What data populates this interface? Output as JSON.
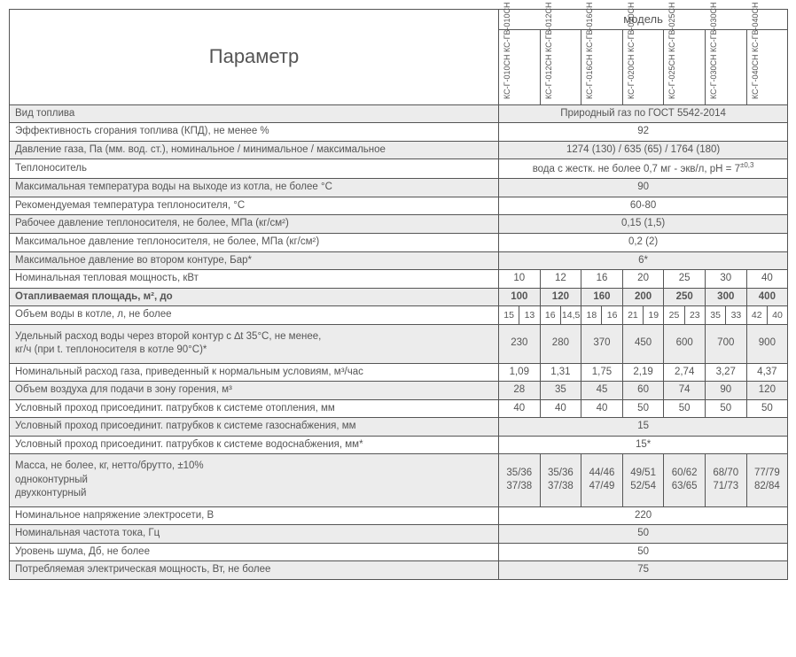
{
  "colors": {
    "border": "#555555",
    "shade": "#ececec",
    "text": "#555555"
  },
  "header": {
    "param": "Параметр",
    "model": "модель"
  },
  "models": [
    "КС-Г-010СН\nКС-ГВ-010СН",
    "КС-Г-012СН\nКС-ГВ-012СН",
    "КС-Г-016СН\nКС-ГВ-016СН",
    "КС-Г-020СН\nКС-ГВ-020СН",
    "КС-Г-025СН\nКС-ГВ-025СН",
    "КС-Г-030СН\nКС-ГВ-030СН",
    "КС-Г-040СН\nКС-ГВ-040СН"
  ],
  "rows": [
    {
      "shade": true,
      "label": "Вид топлива",
      "span": true,
      "value": "Природный газ по ГОСТ 5542-2014"
    },
    {
      "shade": false,
      "label": "Эффективность сгорания топлива (КПД), не менее  %",
      "span": true,
      "value": "92"
    },
    {
      "shade": true,
      "label": "Давление газа, Па (мм. вод. ст.), номинальное / минимальное / максимальное",
      "span": true,
      "value": "1274 (130) / 635 (65) / 1764 (180)"
    },
    {
      "shade": false,
      "label": "Теплоноситель",
      "span": true,
      "value": "вода с жестк. не более 0,7 мг - экв/л,  рН = 7"
    },
    {
      "shade": true,
      "label": "Максимальная температура воды на выходе из котла, не более °С",
      "span": true,
      "value": "90"
    },
    {
      "shade": false,
      "label": "Рекомендуемая температура теплоносителя, °С",
      "span": true,
      "value": "60-80"
    },
    {
      "shade": true,
      "label": "Рабочее давление теплоносителя, не более, МПа (кг/см²)",
      "span": true,
      "value": "0,15 (1,5)"
    },
    {
      "shade": false,
      "label": "Максимальное давление теплоносителя, не более, МПа (кг/см²)",
      "span": true,
      "value": "0,2 (2)"
    },
    {
      "shade": true,
      "label": "Максимальное давление во втором контуре, Бар*",
      "span": true,
      "value": "6*"
    },
    {
      "shade": false,
      "label": "Номинальная тепловая мощность, кВт",
      "span": false,
      "values": [
        "10",
        "12",
        "16",
        "20",
        "25",
        "30",
        "40"
      ]
    },
    {
      "shade": true,
      "bold": true,
      "label": "Отапливаемая площадь, м², до",
      "span": false,
      "values": [
        "100",
        "120",
        "160",
        "200",
        "250",
        "300",
        "400"
      ]
    },
    {
      "shade": false,
      "label": "Объем воды в котле, л, не более",
      "span": false,
      "split": true,
      "valuesSplit": [
        [
          "15",
          "13"
        ],
        [
          "16",
          "14,5"
        ],
        [
          "18",
          "16"
        ],
        [
          "21",
          "19"
        ],
        [
          "25",
          "23"
        ],
        [
          "35",
          "33"
        ],
        [
          "42",
          "40"
        ]
      ]
    },
    {
      "shade": true,
      "tall": true,
      "label": "Удельный расход воды через второй контур с ∆t 35°С, не менее,\nкг/ч (при t. теплоносителя в котле 90°С)*",
      "span": false,
      "values": [
        "230",
        "280",
        "370",
        "450",
        "600",
        "700",
        "900"
      ]
    },
    {
      "shade": false,
      "label": "Номинальный расход газа, приведенный к нормальным условиям, м³/час",
      "span": false,
      "values": [
        "1,09",
        "1,31",
        "1,75",
        "2,19",
        "2,74",
        "3,27",
        "4,37"
      ]
    },
    {
      "shade": true,
      "label": "Объем воздуха для подачи в зону горения, м³",
      "span": false,
      "values": [
        "28",
        "35",
        "45",
        "60",
        "74",
        "90",
        "120"
      ]
    },
    {
      "shade": false,
      "label": "Условный проход присоединит. патрубков к системе отопления, мм",
      "span": false,
      "values": [
        "40",
        "40",
        "40",
        "50",
        "50",
        "50",
        "50"
      ]
    },
    {
      "shade": true,
      "label": "Условный проход присоединит. патрубков к системе газоснабжения, мм",
      "span": true,
      "value": "15"
    },
    {
      "shade": false,
      "label": "Условный проход присоединит. патрубков к системе водоснабжения, мм*",
      "span": true,
      "value": "15*"
    },
    {
      "shade": true,
      "tall": true,
      "label": "Масса, не более, кг, нетто/брутто,  ±10%\nодноконтурный\nдвухконтурный",
      "span": false,
      "values": [
        "35/36\n37/38",
        "35/36\n37/38",
        "44/46\n47/49",
        "49/51\n52/54",
        "60/62\n63/65",
        "68/70\n71/73",
        "77/79\n82/84"
      ]
    },
    {
      "shade": false,
      "label": "Номинальное напряжение электросети, В",
      "span": true,
      "value": "220"
    },
    {
      "shade": true,
      "label": "Номинальная частота тока, Гц",
      "span": true,
      "value": "50"
    },
    {
      "shade": false,
      "label": "Уровень шума, Дб, не более",
      "span": true,
      "value": "50"
    },
    {
      "shade": true,
      "label": "Потребляемая электрическая мощность, Вт, не более",
      "span": true,
      "value": "75"
    }
  ]
}
